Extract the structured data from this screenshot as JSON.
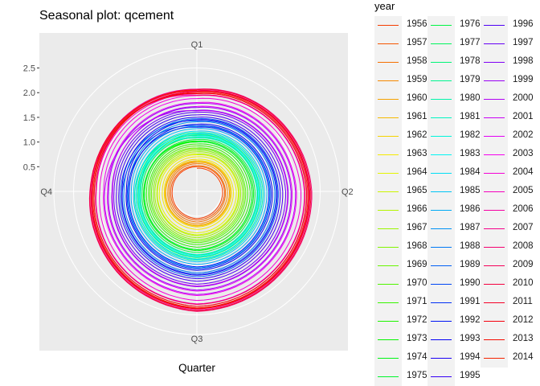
{
  "chart_data": {
    "type": "line",
    "subtype": "polar seasonal plot",
    "title": "Seasonal plot: qcement",
    "xlabel": "Quarter",
    "ylabel": "",
    "categories": [
      "Q1",
      "Q2",
      "Q3",
      "Q4"
    ],
    "radial_ticks": [
      "0.5",
      "1.0",
      "1.5",
      "2.0",
      "2.5"
    ],
    "radial_tick_values": [
      0.5,
      1.0,
      1.5,
      2.0,
      2.5
    ],
    "rlim": [
      0,
      2.9
    ],
    "grid": true,
    "panel_background": "#ebebeb",
    "legend_title": "year",
    "legend_position": "right",
    "years": [
      1956,
      1957,
      1958,
      1959,
      1960,
      1961,
      1962,
      1963,
      1964,
      1965,
      1966,
      1967,
      1968,
      1969,
      1970,
      1971,
      1972,
      1973,
      1974,
      1975,
      1976,
      1977,
      1978,
      1979,
      1980,
      1981,
      1982,
      1983,
      1984,
      1985,
      1986,
      1987,
      1988,
      1989,
      1990,
      1991,
      1992,
      1993,
      1994,
      1995,
      1996,
      1997,
      1998,
      1999,
      2000,
      2001,
      2002,
      2003,
      2004,
      2005,
      2006,
      2007,
      2008,
      2009,
      2010,
      2011,
      2012,
      2013,
      2014
    ],
    "year_labels": [
      "1956",
      "1957",
      "1958",
      "1959",
      "1960",
      "1961",
      "1962",
      "1963",
      "1964",
      "1965",
      "1966",
      "1967",
      "1968",
      "1969",
      "1970",
      "1971",
      "1972",
      "1973",
      "1974",
      "1975",
      "1976",
      "1977",
      "1978",
      "1979",
      "1980",
      "1981",
      "1982",
      "1983",
      "1984",
      "1985",
      "1986",
      "1987",
      "1988",
      "1989",
      "1990",
      "1991",
      "1992",
      "1993",
      "1994",
      "1995",
      "1996",
      "1997",
      "1998",
      "1999",
      "2000",
      "2001",
      "2002",
      "2003",
      "2004",
      "2005",
      "2006",
      "2007",
      "2008",
      "2009",
      "2010",
      "2011",
      "2012",
      "2013",
      "2014"
    ],
    "series_values_estimated": [
      [
        0.47,
        0.52,
        0.55,
        0.5
      ],
      [
        0.5,
        0.56,
        0.58,
        0.53
      ],
      [
        0.52,
        0.58,
        0.62,
        0.56
      ],
      [
        0.56,
        0.62,
        0.66,
        0.59
      ],
      [
        0.59,
        0.66,
        0.69,
        0.63
      ],
      [
        0.6,
        0.68,
        0.7,
        0.64
      ],
      [
        0.62,
        0.7,
        0.72,
        0.66
      ],
      [
        0.65,
        0.74,
        0.77,
        0.7
      ],
      [
        0.7,
        0.8,
        0.84,
        0.76
      ],
      [
        0.74,
        0.84,
        0.88,
        0.8
      ],
      [
        0.76,
        0.86,
        0.9,
        0.81
      ],
      [
        0.8,
        0.89,
        0.94,
        0.85
      ],
      [
        0.83,
        0.93,
        0.98,
        0.88
      ],
      [
        0.86,
        0.96,
        1.01,
        0.92
      ],
      [
        0.88,
        0.99,
        1.04,
        0.95
      ],
      [
        0.92,
        1.03,
        1.08,
        0.98
      ],
      [
        0.96,
        1.08,
        1.13,
        1.02
      ],
      [
        1.0,
        1.12,
        1.18,
        1.06
      ],
      [
        1.02,
        1.15,
        1.2,
        1.08
      ],
      [
        1.0,
        1.12,
        1.18,
        1.06
      ],
      [
        1.05,
        1.18,
        1.24,
        1.11
      ],
      [
        1.09,
        1.23,
        1.29,
        1.15
      ],
      [
        1.14,
        1.28,
        1.34,
        1.2
      ],
      [
        1.16,
        1.31,
        1.37,
        1.23
      ],
      [
        1.19,
        1.34,
        1.4,
        1.26
      ],
      [
        1.13,
        1.27,
        1.33,
        1.19
      ],
      [
        1.08,
        1.22,
        1.28,
        1.14
      ],
      [
        1.11,
        1.25,
        1.31,
        1.17
      ],
      [
        1.17,
        1.31,
        1.38,
        1.23
      ],
      [
        1.22,
        1.37,
        1.43,
        1.28
      ],
      [
        1.27,
        1.42,
        1.48,
        1.33
      ],
      [
        1.32,
        1.48,
        1.55,
        1.39
      ],
      [
        1.41,
        1.58,
        1.65,
        1.48
      ],
      [
        1.47,
        1.65,
        1.73,
        1.55
      ],
      [
        1.43,
        1.61,
        1.68,
        1.51
      ],
      [
        1.33,
        1.5,
        1.57,
        1.41
      ],
      [
        1.3,
        1.46,
        1.53,
        1.37
      ],
      [
        1.36,
        1.53,
        1.6,
        1.43
      ],
      [
        1.45,
        1.63,
        1.7,
        1.52
      ],
      [
        1.5,
        1.69,
        1.77,
        1.58
      ],
      [
        1.55,
        1.74,
        1.82,
        1.63
      ],
      [
        1.6,
        1.8,
        1.88,
        1.68
      ],
      [
        1.64,
        1.85,
        1.93,
        1.72
      ],
      [
        1.7,
        1.91,
        2.0,
        1.79
      ],
      [
        1.78,
        2.0,
        2.09,
        1.87
      ],
      [
        1.63,
        1.84,
        1.92,
        1.71
      ],
      [
        1.72,
        1.93,
        2.02,
        1.81
      ],
      [
        1.8,
        2.02,
        2.11,
        1.89
      ],
      [
        1.88,
        2.11,
        2.21,
        1.97
      ],
      [
        1.94,
        2.18,
        2.28,
        2.04
      ],
      [
        1.98,
        2.23,
        2.33,
        2.08
      ],
      [
        2.04,
        2.29,
        2.4,
        2.14
      ],
      [
        2.07,
        2.33,
        2.43,
        2.17
      ],
      [
        1.95,
        2.19,
        2.29,
        2.05
      ],
      [
        2.02,
        2.27,
        2.37,
        2.12
      ],
      [
        2.06,
        2.31,
        2.42,
        2.16
      ],
      [
        2.03,
        2.28,
        2.38,
        2.13
      ],
      [
        1.98,
        2.22,
        2.33,
        2.08
      ],
      [
        2.0,
        2.25,
        2.36,
        2.1
      ]
    ]
  }
}
